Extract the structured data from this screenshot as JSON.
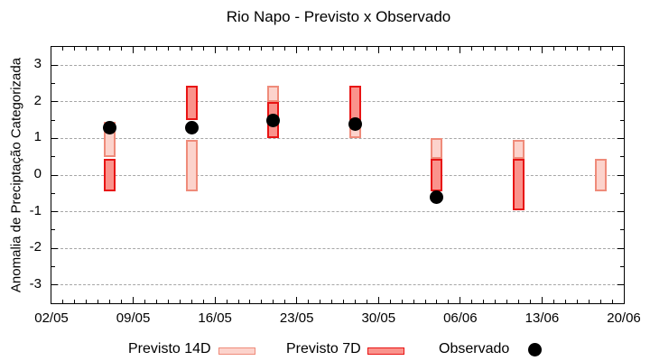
{
  "chart": {
    "title": "Rio Napo - Previsto x Observado",
    "ylabel": "Anomalia de Preciptação Categorizada"
  },
  "colors": {
    "p14_fill": "#fcd3cc",
    "p14_border": "#ef8b7a",
    "p7_fill": "#fa938c",
    "p7_border": "#e81414",
    "observed": "#000000",
    "grid": "#a6a6a6",
    "axis": "#000000",
    "background": "#ffffff"
  },
  "chart_data": {
    "type": "bar",
    "subtype": "range-bars-with-scatter",
    "title": "Rio Napo - Previsto x Observado",
    "xlabel": "",
    "ylabel": "Anomalia de Preciptação Categorizada",
    "ylim": [
      -3.5,
      3.5
    ],
    "xlim_days": [
      0,
      49
    ],
    "grid": "horizontal-dashed",
    "yticks": [
      -3,
      -2,
      -1,
      0,
      1,
      2,
      3
    ],
    "ytick_minor_step": 0.5,
    "xtick_minor_step_days": 1,
    "xticks": [
      {
        "day": 0,
        "label": "02/05"
      },
      {
        "day": 7,
        "label": "09/05"
      },
      {
        "day": 14,
        "label": "16/05"
      },
      {
        "day": 21,
        "label": "23/05"
      },
      {
        "day": 28,
        "label": "30/05"
      },
      {
        "day": 35,
        "label": "06/06"
      },
      {
        "day": 42,
        "label": "13/06"
      },
      {
        "day": 49,
        "label": "20/06"
      }
    ],
    "series": [
      {
        "name": "Previsto 14D",
        "type": "range-bar",
        "points": [
          {
            "day": 5,
            "low": 0.5,
            "high": 1.45
          },
          {
            "day": 12,
            "low": -0.45,
            "high": 0.95
          },
          {
            "day": 19,
            "low": 2.0,
            "high": 2.45
          },
          {
            "day": 26,
            "low": 1.0,
            "high": 1.5
          },
          {
            "day": 33,
            "low": 0.45,
            "high": 1.0
          },
          {
            "day": 40,
            "low": 0.45,
            "high": 0.95
          },
          {
            "day": 47,
            "low": -0.45,
            "high": 0.45
          }
        ]
      },
      {
        "name": "Previsto 7D",
        "type": "range-bar",
        "points": [
          {
            "day": 5,
            "low": -0.45,
            "high": 0.45
          },
          {
            "day": 12,
            "low": 1.5,
            "high": 2.45
          },
          {
            "day": 19,
            "low": 1.0,
            "high": 2.0
          },
          {
            "day": 26,
            "low": 1.5,
            "high": 2.45
          },
          {
            "day": 33,
            "low": -0.45,
            "high": 0.45
          },
          {
            "day": 40,
            "low": -0.95,
            "high": 0.45
          }
        ]
      },
      {
        "name": "Observado",
        "type": "scatter",
        "points": [
          {
            "day": 5,
            "value": 1.3
          },
          {
            "day": 12,
            "value": 1.3
          },
          {
            "day": 19,
            "value": 1.5
          },
          {
            "day": 26,
            "value": 1.4
          },
          {
            "day": 33,
            "value": -0.6
          }
        ]
      }
    ],
    "legend": {
      "position": "bottom",
      "entries": [
        {
          "label": "Previsto 14D",
          "marker": "box-14d"
        },
        {
          "label": "Previsto 7D",
          "marker": "box-7d"
        },
        {
          "label": "Observado",
          "marker": "dot"
        }
      ]
    }
  }
}
